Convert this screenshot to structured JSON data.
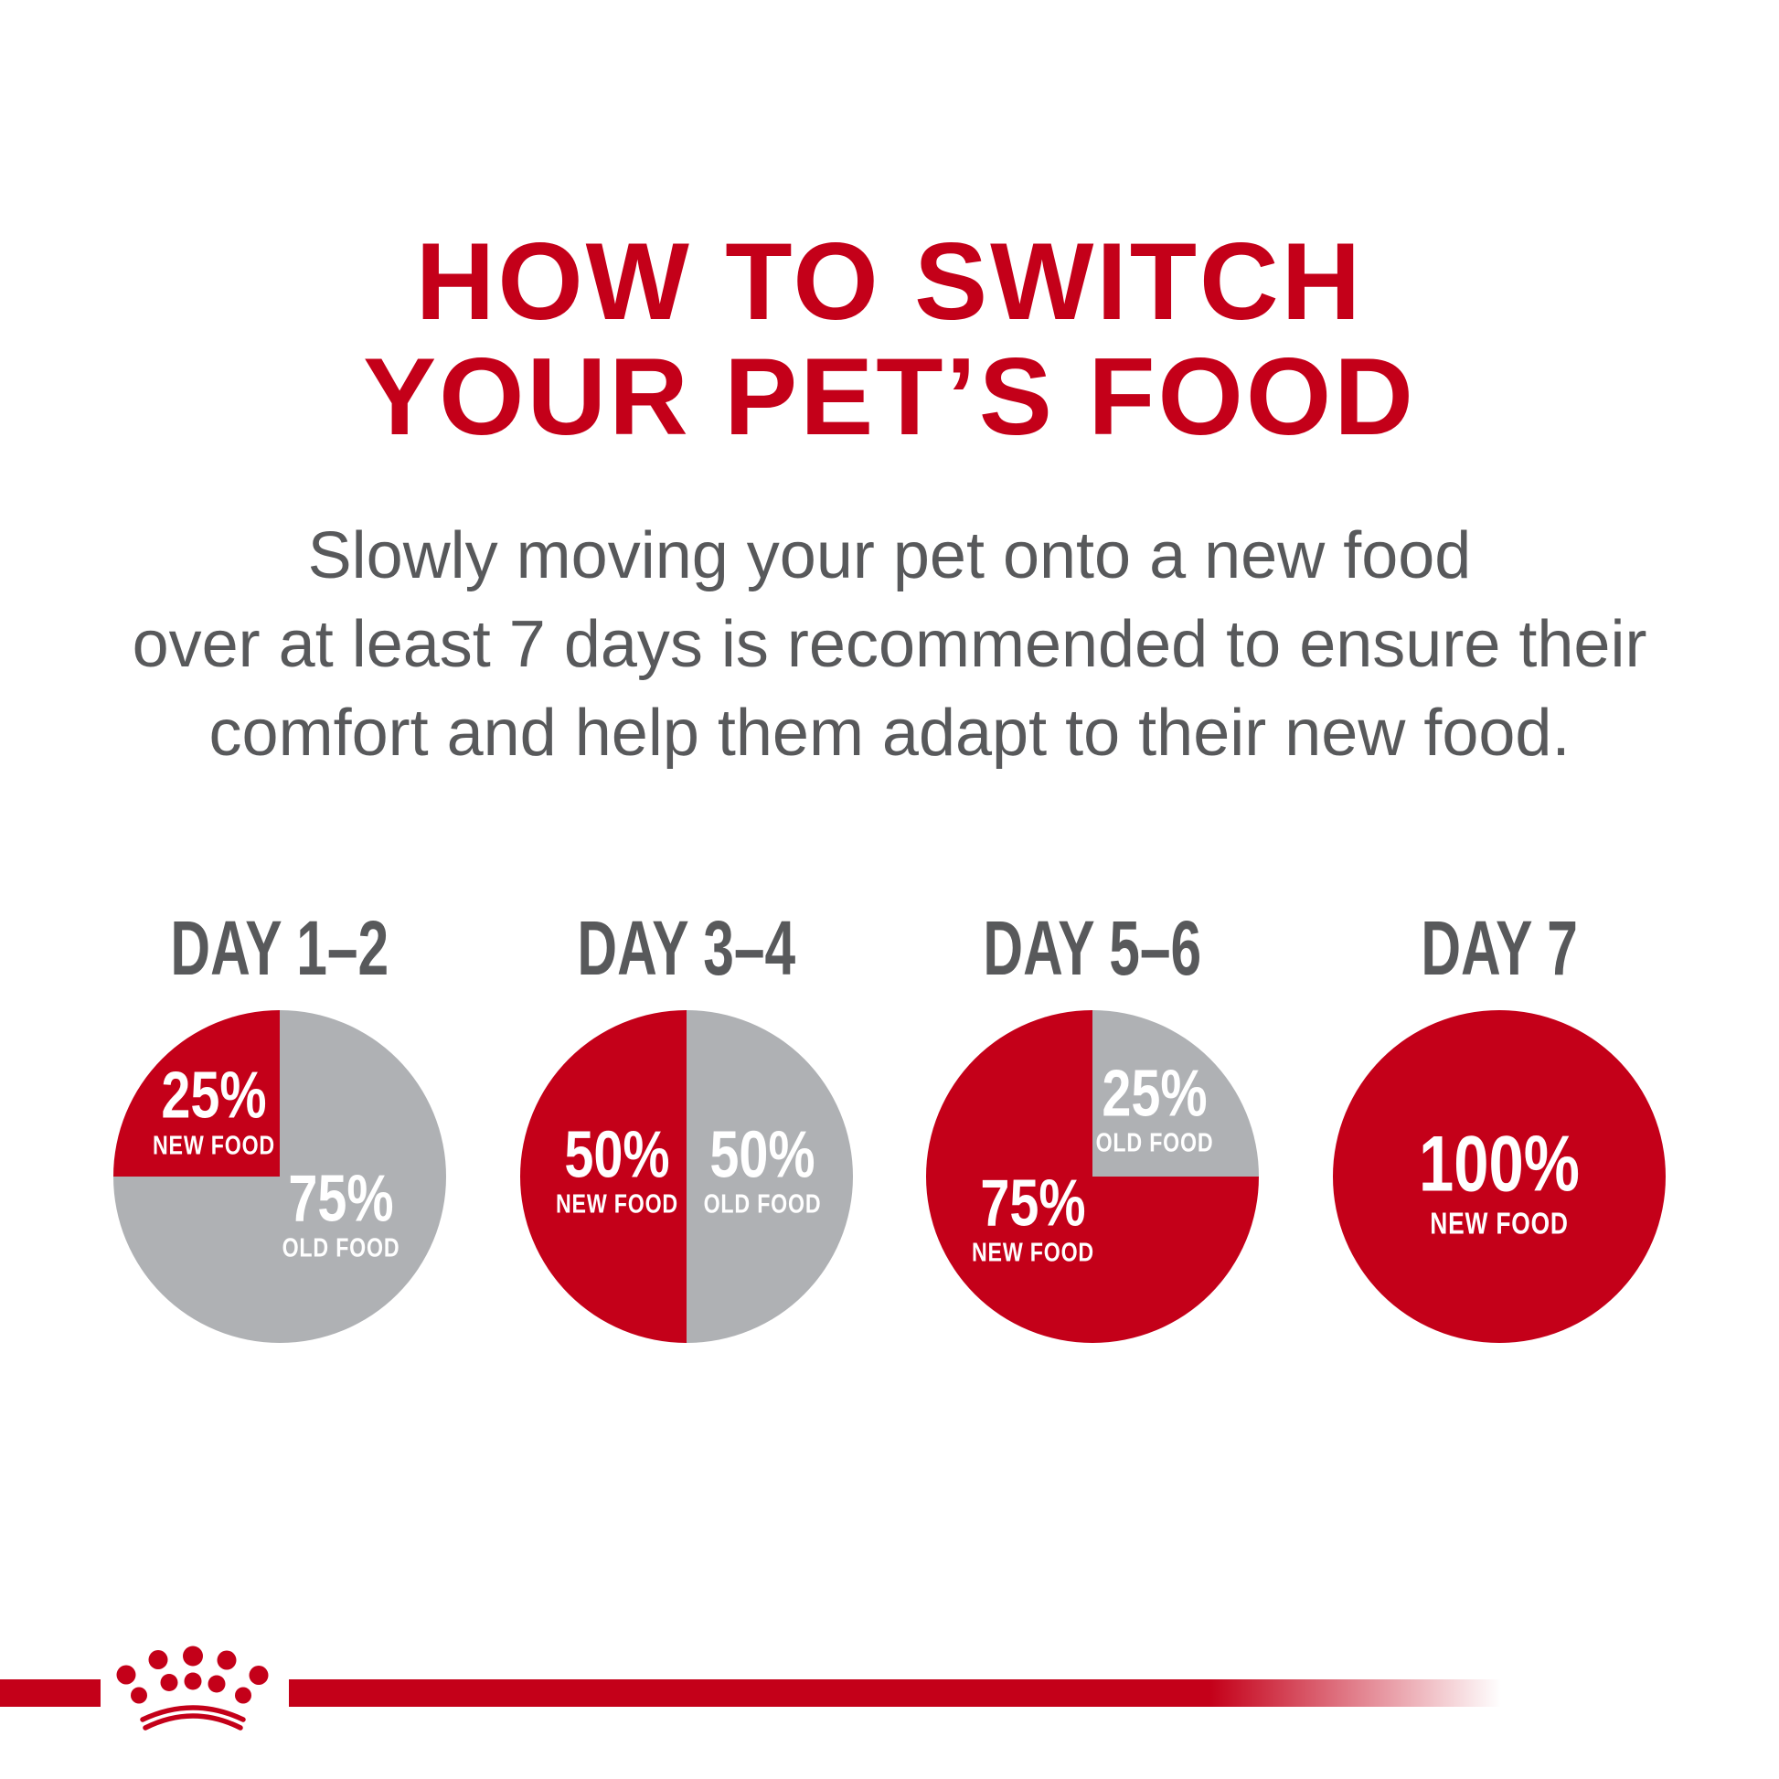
{
  "title": {
    "line1": "HOW TO SWITCH",
    "line2": "YOUR PET’S FOOD"
  },
  "subtitle": {
    "line1": "Slowly moving your pet onto a new food",
    "line2": "over at least 7 days is recommended to ensure their",
    "line3": "comfort and help them adapt to their new food."
  },
  "colors": {
    "brand_red": "#C40019",
    "pie_gray": "#AFB1B4",
    "text_gray": "#58595B",
    "label_white": "#FFFFFF"
  },
  "days": [
    {
      "label": "DAY 1–2",
      "slices": [
        {
          "food": "old",
          "pct": 75
        },
        {
          "food": "new",
          "pct": 25
        }
      ],
      "callouts": [
        {
          "value": "25%",
          "caption": "NEW FOOD",
          "pos": "nw"
        },
        {
          "value": "75%",
          "caption": "OLD FOOD",
          "pos": "se"
        }
      ]
    },
    {
      "label": "DAY 3–4",
      "slices": [
        {
          "food": "old",
          "pct": 50
        },
        {
          "food": "new",
          "pct": 50
        }
      ],
      "callouts": [
        {
          "value": "50%",
          "caption": "NEW FOOD",
          "pos": "w"
        },
        {
          "value": "50%",
          "caption": "OLD FOOD",
          "pos": "e"
        }
      ]
    },
    {
      "label": "DAY 5–6",
      "slices": [
        {
          "food": "old",
          "pct": 25
        },
        {
          "food": "new",
          "pct": 75
        }
      ],
      "callouts": [
        {
          "value": "25%",
          "caption": "OLD FOOD",
          "pos": "ne"
        },
        {
          "value": "75%",
          "caption": "NEW FOOD",
          "pos": "sw"
        }
      ]
    },
    {
      "label": "DAY 7",
      "slices": [
        {
          "food": "new",
          "pct": 100
        }
      ],
      "callouts": [
        {
          "value": "100%",
          "caption": "NEW FOOD",
          "pos": "c"
        }
      ]
    }
  ],
  "chart_data": [
    {
      "type": "pie",
      "title": "DAY 1–2",
      "labels": [
        "NEW FOOD",
        "OLD FOOD"
      ],
      "values": [
        25,
        75
      ],
      "colors": [
        "#C40019",
        "#AFB1B4"
      ],
      "start": "red slice from 270deg to 360deg (top-left quadrant)"
    },
    {
      "type": "pie",
      "title": "DAY 3–4",
      "labels": [
        "NEW FOOD",
        "OLD FOOD"
      ],
      "values": [
        50,
        50
      ],
      "colors": [
        "#C40019",
        "#AFB1B4"
      ],
      "start": "red slice is left half"
    },
    {
      "type": "pie",
      "title": "DAY 5–6",
      "labels": [
        "NEW FOOD",
        "OLD FOOD"
      ],
      "values": [
        75,
        25
      ],
      "colors": [
        "#C40019",
        "#AFB1B4"
      ],
      "start": "gray slice from 0deg to 90deg (top-right quadrant)"
    },
    {
      "type": "pie",
      "title": "DAY 7",
      "labels": [
        "NEW FOOD"
      ],
      "values": [
        100
      ],
      "colors": [
        "#C40019"
      ],
      "start": "full circle"
    }
  ],
  "footer": {
    "logo": "royal-canin-crown"
  }
}
